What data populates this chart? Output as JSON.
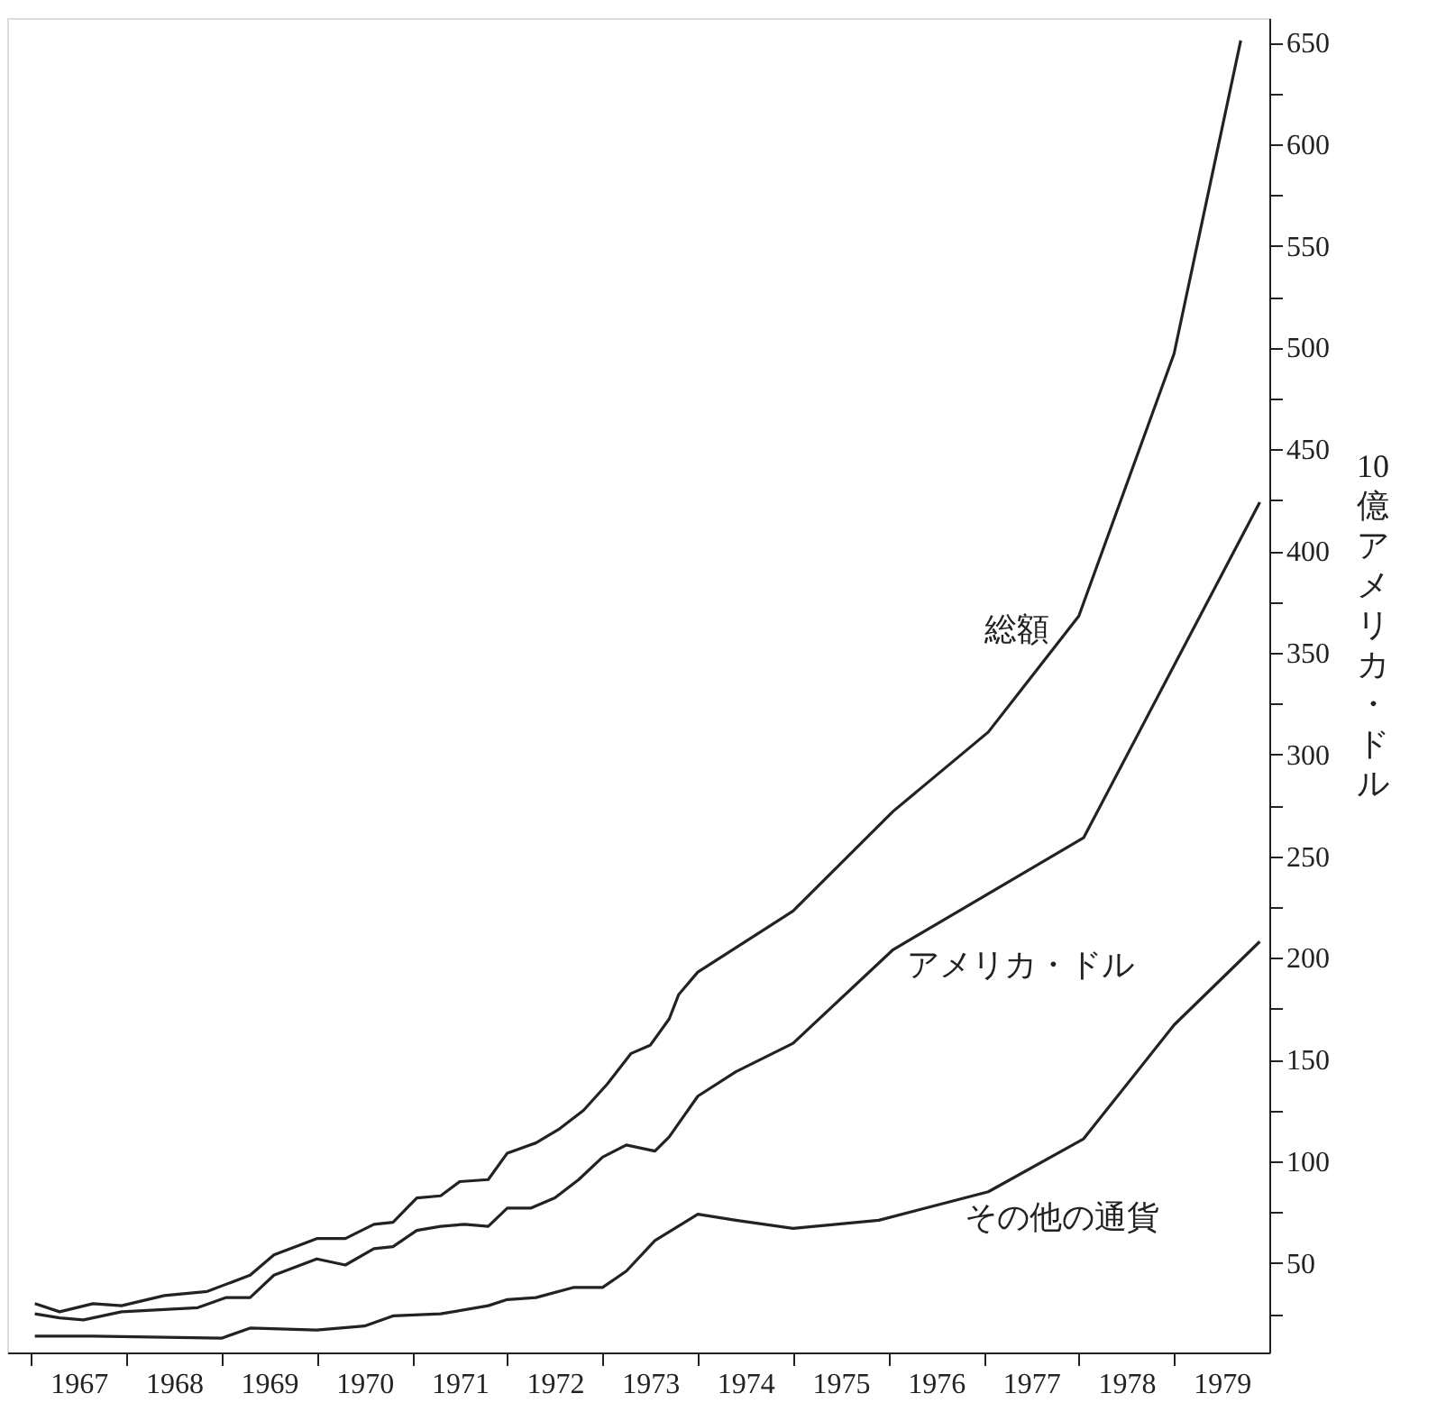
{
  "chart_data": {
    "type": "line",
    "ylabel": "10億アメリカ・ドル",
    "series": [
      {
        "name": "総額",
        "color": "#222222",
        "x": [
          1967.04,
          1967.3,
          1967.65,
          1967.95,
          1968.4,
          1968.85,
          1969.3,
          1969.55,
          1970.0,
          1970.3,
          1970.6,
          1970.8,
          1971.05,
          1971.3,
          1971.5,
          1971.8,
          1972.0,
          1972.3,
          1972.55,
          1972.8,
          1973.05,
          1973.3,
          1973.5,
          1973.7,
          1973.8,
          1974.0,
          1975.0,
          1976.05,
          1977.05,
          1978.0,
          1979.0,
          1979.7
        ],
        "values": [
          30,
          26,
          30,
          29,
          34,
          36,
          44,
          54,
          62,
          62,
          69,
          70,
          82,
          83,
          90,
          91,
          104,
          109,
          116,
          125,
          138,
          153,
          157,
          170,
          182,
          193,
          223,
          272,
          311,
          368,
          497,
          651
        ]
      },
      {
        "name": "アメリカ・ドル",
        "color": "#222222",
        "x": [
          1967.04,
          1967.3,
          1967.55,
          1967.95,
          1968.75,
          1969.05,
          1969.3,
          1969.55,
          1970.0,
          1970.3,
          1970.6,
          1970.8,
          1971.05,
          1971.3,
          1971.55,
          1971.8,
          1972.0,
          1972.25,
          1972.5,
          1972.75,
          1973.0,
          1973.25,
          1973.55,
          1973.7,
          1974.0,
          1974.4,
          1975.0,
          1976.05,
          1978.05,
          1979.9
        ],
        "values": [
          25,
          23,
          22,
          26,
          28,
          33,
          33,
          44,
          52,
          49,
          57,
          58,
          66,
          68,
          69,
          68,
          77,
          77,
          82,
          91,
          102,
          108,
          105,
          112,
          132,
          144,
          158,
          204,
          259,
          424
        ]
      },
      {
        "name": "その他の通貨",
        "color": "#222222",
        "x": [
          1967.04,
          1967.65,
          1969.0,
          1969.3,
          1970.0,
          1970.5,
          1970.8,
          1971.3,
          1971.8,
          1972.0,
          1972.3,
          1972.7,
          1973.0,
          1973.25,
          1973.55,
          1974.0,
          1974.4,
          1975.0,
          1975.9,
          1977.05,
          1978.05,
          1979.0,
          1979.9
        ],
        "values": [
          14,
          14,
          13,
          18,
          17,
          19,
          24,
          25,
          29,
          32,
          33,
          38,
          38,
          46,
          61,
          74,
          71,
          67,
          71,
          85,
          111,
          167,
          208
        ]
      }
    ],
    "xlim": [
      1966.75,
      1980
    ],
    "xticks": [
      {
        "value": 1967,
        "label": null
      },
      {
        "value": 1967.5,
        "label": "1967"
      },
      {
        "value": 1968,
        "label": null
      },
      {
        "value": 1968.5,
        "label": "1968"
      },
      {
        "value": 1969,
        "label": null
      },
      {
        "value": 1969.5,
        "label": "1969"
      },
      {
        "value": 1970,
        "label": null
      },
      {
        "value": 1970.5,
        "label": "1970"
      },
      {
        "value": 1971,
        "label": null
      },
      {
        "value": 1971.5,
        "label": "1971"
      },
      {
        "value": 1972,
        "label": null
      },
      {
        "value": 1972.5,
        "label": "1972"
      },
      {
        "value": 1973,
        "label": null
      },
      {
        "value": 1973.5,
        "label": "1973"
      },
      {
        "value": 1974,
        "label": null
      },
      {
        "value": 1974.5,
        "label": "1974"
      },
      {
        "value": 1975,
        "label": null
      },
      {
        "value": 1975.5,
        "label": "1975"
      },
      {
        "value": 1976,
        "label": null
      },
      {
        "value": 1976.5,
        "label": "1976"
      },
      {
        "value": 1977,
        "label": null
      },
      {
        "value": 1977.5,
        "label": "1977"
      },
      {
        "value": 1978,
        "label": null
      },
      {
        "value": 1978.5,
        "label": "1978"
      },
      {
        "value": 1979,
        "label": null
      },
      {
        "value": 1979.5,
        "label": "1979"
      }
    ],
    "ylim": [
      6,
      662
    ],
    "yticks": [
      {
        "value": 25,
        "label": null
      },
      50,
      {
        "value": 75,
        "label": null
      },
      100,
      {
        "value": 125,
        "label": null
      },
      150,
      {
        "value": 175,
        "label": null
      },
      200,
      {
        "value": 225,
        "label": null
      },
      250,
      {
        "value": 275,
        "label": null
      },
      300,
      {
        "value": 325,
        "label": null
      },
      350,
      {
        "value": 375,
        "label": null
      },
      400,
      {
        "value": 425,
        "label": null
      },
      450,
      {
        "value": 475,
        "label": null
      },
      500,
      {
        "value": 525,
        "label": null
      },
      550,
      {
        "value": 575,
        "label": null
      },
      600,
      {
        "value": 625,
        "label": null
      },
      650
    ]
  }
}
